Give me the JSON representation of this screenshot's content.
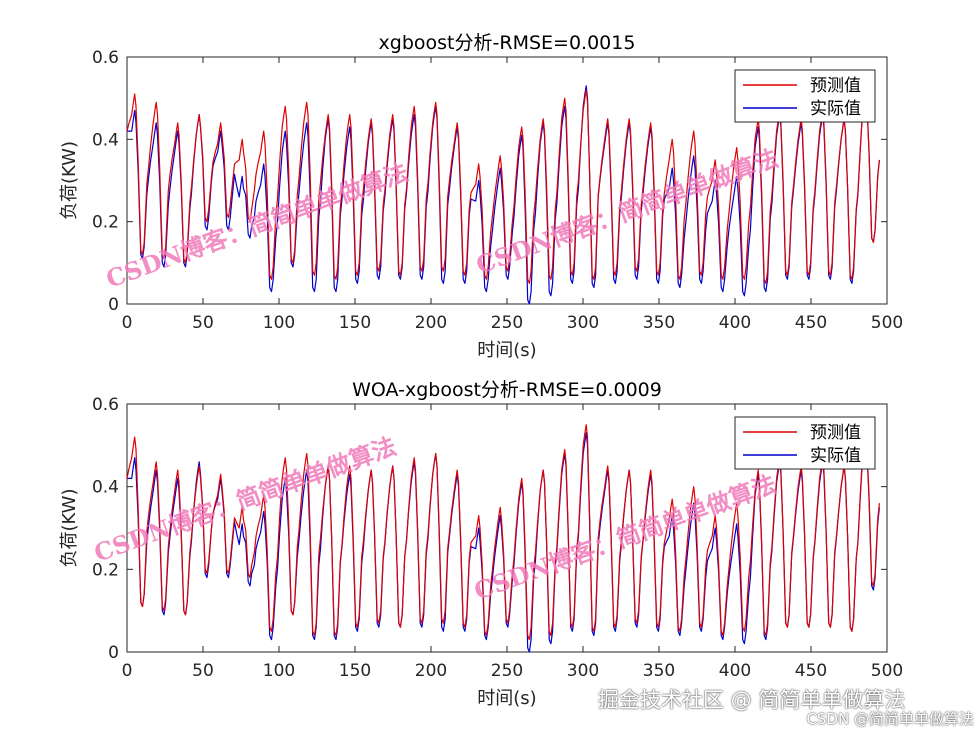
{
  "chart_data": [
    {
      "type": "line",
      "title": "xgboost分析-RMSE=0.0015",
      "xlabel": "时间(s)",
      "ylabel": "负荷(KW)",
      "xlim": [
        0,
        500
      ],
      "ylim": [
        0,
        0.6
      ],
      "xticks": [
        0,
        50,
        100,
        150,
        200,
        250,
        300,
        350,
        400,
        450,
        500
      ],
      "yticks": [
        0,
        0.2,
        0.4,
        0.6
      ],
      "legend_position": "top-right",
      "series": [
        {
          "name": "预测值",
          "color": "#e00000",
          "peaks": [
            0.51,
            0.49,
            0.44,
            0.46,
            0.44,
            0.4,
            0.42,
            0.48,
            0.49,
            0.46,
            0.46,
            0.45,
            0.46,
            0.48,
            0.49,
            0.44,
            0.34,
            0.36,
            0.43,
            0.45,
            0.5,
            0.52,
            0.45,
            0.45,
            0.44,
            0.4,
            0.42,
            0.35,
            0.38,
            0.45,
            0.47,
            0.45,
            0.47,
            0.45,
            0.52
          ],
          "troughs": [
            0.12,
            0.11,
            0.1,
            0.2,
            0.21,
            0.2,
            0.06,
            0.1,
            0.07,
            0.06,
            0.07,
            0.08,
            0.07,
            0.08,
            0.08,
            0.07,
            0.06,
            0.08,
            0.05,
            0.06,
            0.07,
            0.06,
            0.07,
            0.08,
            0.07,
            0.06,
            0.07,
            0.06,
            0.06,
            0.05,
            0.07,
            0.07,
            0.07,
            0.06,
            0.15
          ]
        },
        {
          "name": "实际值",
          "color": "#0000cc",
          "peaks": [
            0.47,
            0.44,
            0.42,
            0.46,
            0.42,
            0.31,
            0.34,
            0.42,
            0.44,
            0.45,
            0.43,
            0.44,
            0.45,
            0.46,
            0.48,
            0.43,
            0.3,
            0.33,
            0.41,
            0.44,
            0.48,
            0.53,
            0.44,
            0.44,
            0.43,
            0.33,
            0.36,
            0.3,
            0.31,
            0.43,
            0.46,
            0.44,
            0.46,
            0.45,
            0.52
          ],
          "troughs": [
            0.11,
            0.09,
            0.09,
            0.18,
            0.18,
            0.16,
            0.03,
            0.09,
            0.03,
            0.03,
            0.05,
            0.06,
            0.06,
            0.06,
            0.05,
            0.05,
            0.03,
            0.06,
            0.0,
            0.02,
            0.05,
            0.04,
            0.05,
            0.06,
            0.05,
            0.04,
            0.05,
            0.03,
            0.02,
            0.03,
            0.06,
            0.06,
            0.06,
            0.05,
            0.15
          ]
        }
      ]
    },
    {
      "type": "line",
      "title": "WOA-xgboost分析-RMSE=0.0009",
      "xlabel": "时间(s)",
      "ylabel": "负荷(KW)",
      "xlim": [
        0,
        500
      ],
      "ylim": [
        0,
        0.6
      ],
      "xticks": [
        0,
        50,
        100,
        150,
        200,
        250,
        300,
        350,
        400,
        450,
        500
      ],
      "yticks": [
        0,
        0.2,
        0.4,
        0.6
      ],
      "legend_position": "top-right",
      "series": [
        {
          "name": "预测值",
          "color": "#e00000",
          "peaks": [
            0.52,
            0.46,
            0.44,
            0.45,
            0.43,
            0.35,
            0.38,
            0.47,
            0.48,
            0.45,
            0.45,
            0.44,
            0.45,
            0.47,
            0.48,
            0.44,
            0.33,
            0.35,
            0.42,
            0.44,
            0.49,
            0.55,
            0.45,
            0.44,
            0.44,
            0.37,
            0.4,
            0.33,
            0.36,
            0.44,
            0.47,
            0.45,
            0.47,
            0.45,
            0.53
          ],
          "troughs": [
            0.11,
            0.1,
            0.09,
            0.19,
            0.19,
            0.18,
            0.05,
            0.09,
            0.04,
            0.04,
            0.06,
            0.07,
            0.06,
            0.07,
            0.07,
            0.06,
            0.04,
            0.07,
            0.03,
            0.04,
            0.06,
            0.05,
            0.06,
            0.07,
            0.06,
            0.05,
            0.06,
            0.04,
            0.05,
            0.04,
            0.06,
            0.06,
            0.06,
            0.05,
            0.16
          ]
        },
        {
          "name": "实际值",
          "color": "#0000cc",
          "peaks": [
            0.47,
            0.44,
            0.42,
            0.46,
            0.42,
            0.31,
            0.34,
            0.42,
            0.44,
            0.45,
            0.43,
            0.44,
            0.45,
            0.46,
            0.48,
            0.43,
            0.3,
            0.33,
            0.41,
            0.44,
            0.48,
            0.53,
            0.44,
            0.44,
            0.43,
            0.33,
            0.36,
            0.3,
            0.31,
            0.43,
            0.46,
            0.44,
            0.46,
            0.45,
            0.52
          ],
          "troughs": [
            0.11,
            0.09,
            0.09,
            0.18,
            0.18,
            0.16,
            0.03,
            0.09,
            0.03,
            0.03,
            0.05,
            0.06,
            0.06,
            0.06,
            0.05,
            0.05,
            0.03,
            0.06,
            0.0,
            0.02,
            0.05,
            0.04,
            0.05,
            0.06,
            0.05,
            0.04,
            0.05,
            0.03,
            0.02,
            0.03,
            0.06,
            0.06,
            0.06,
            0.05,
            0.15
          ]
        }
      ]
    }
  ],
  "watermark": {
    "text": "CSDN博客：简简单单做算法",
    "color": "#f07ab8"
  },
  "credit": {
    "main": "掘金技术社区 @ 简简单单做算法",
    "sub": "CSDN @简简单单做算法"
  }
}
